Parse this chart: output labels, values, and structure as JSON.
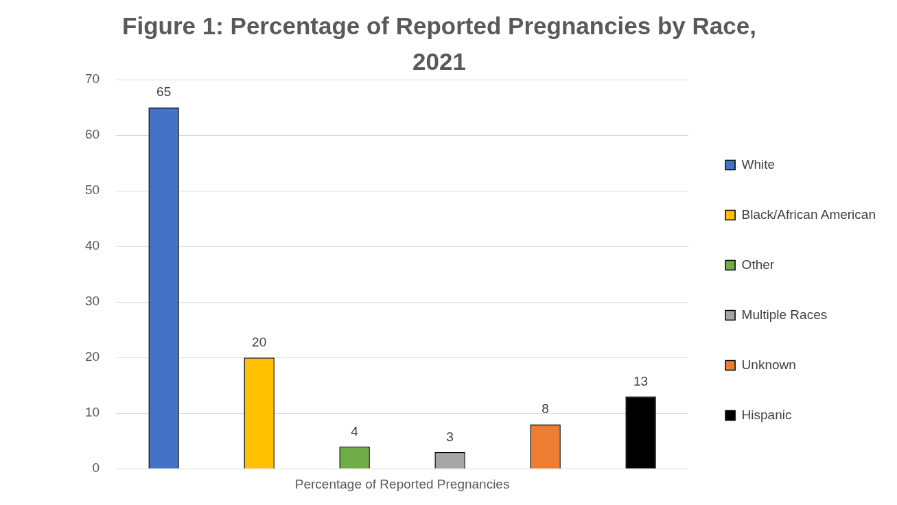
{
  "chart_data": {
    "type": "bar",
    "title": "Figure 1: Percentage of Reported Pregnancies by Race, 2021",
    "categories": [
      "Percentage of Reported Pregnancies"
    ],
    "series": [
      {
        "name": "White",
        "color": "#4472c4",
        "values": [
          65
        ]
      },
      {
        "name": "Black/African American",
        "color": "#ffc000",
        "values": [
          20
        ]
      },
      {
        "name": "Other",
        "color": "#70ad47",
        "values": [
          4
        ]
      },
      {
        "name": "Multiple Races",
        "color": "#a5a5a5",
        "values": [
          3
        ]
      },
      {
        "name": "Unknown",
        "color": "#ed7d31",
        "values": [
          8
        ]
      },
      {
        "name": "Hispanic",
        "color": "#000000",
        "values": [
          13
        ]
      }
    ],
    "ylim": [
      0,
      70
    ],
    "yticks": [
      0,
      10,
      20,
      30,
      40,
      50,
      60,
      70
    ],
    "grid": "y",
    "legend": "right",
    "data_labels": true
  }
}
